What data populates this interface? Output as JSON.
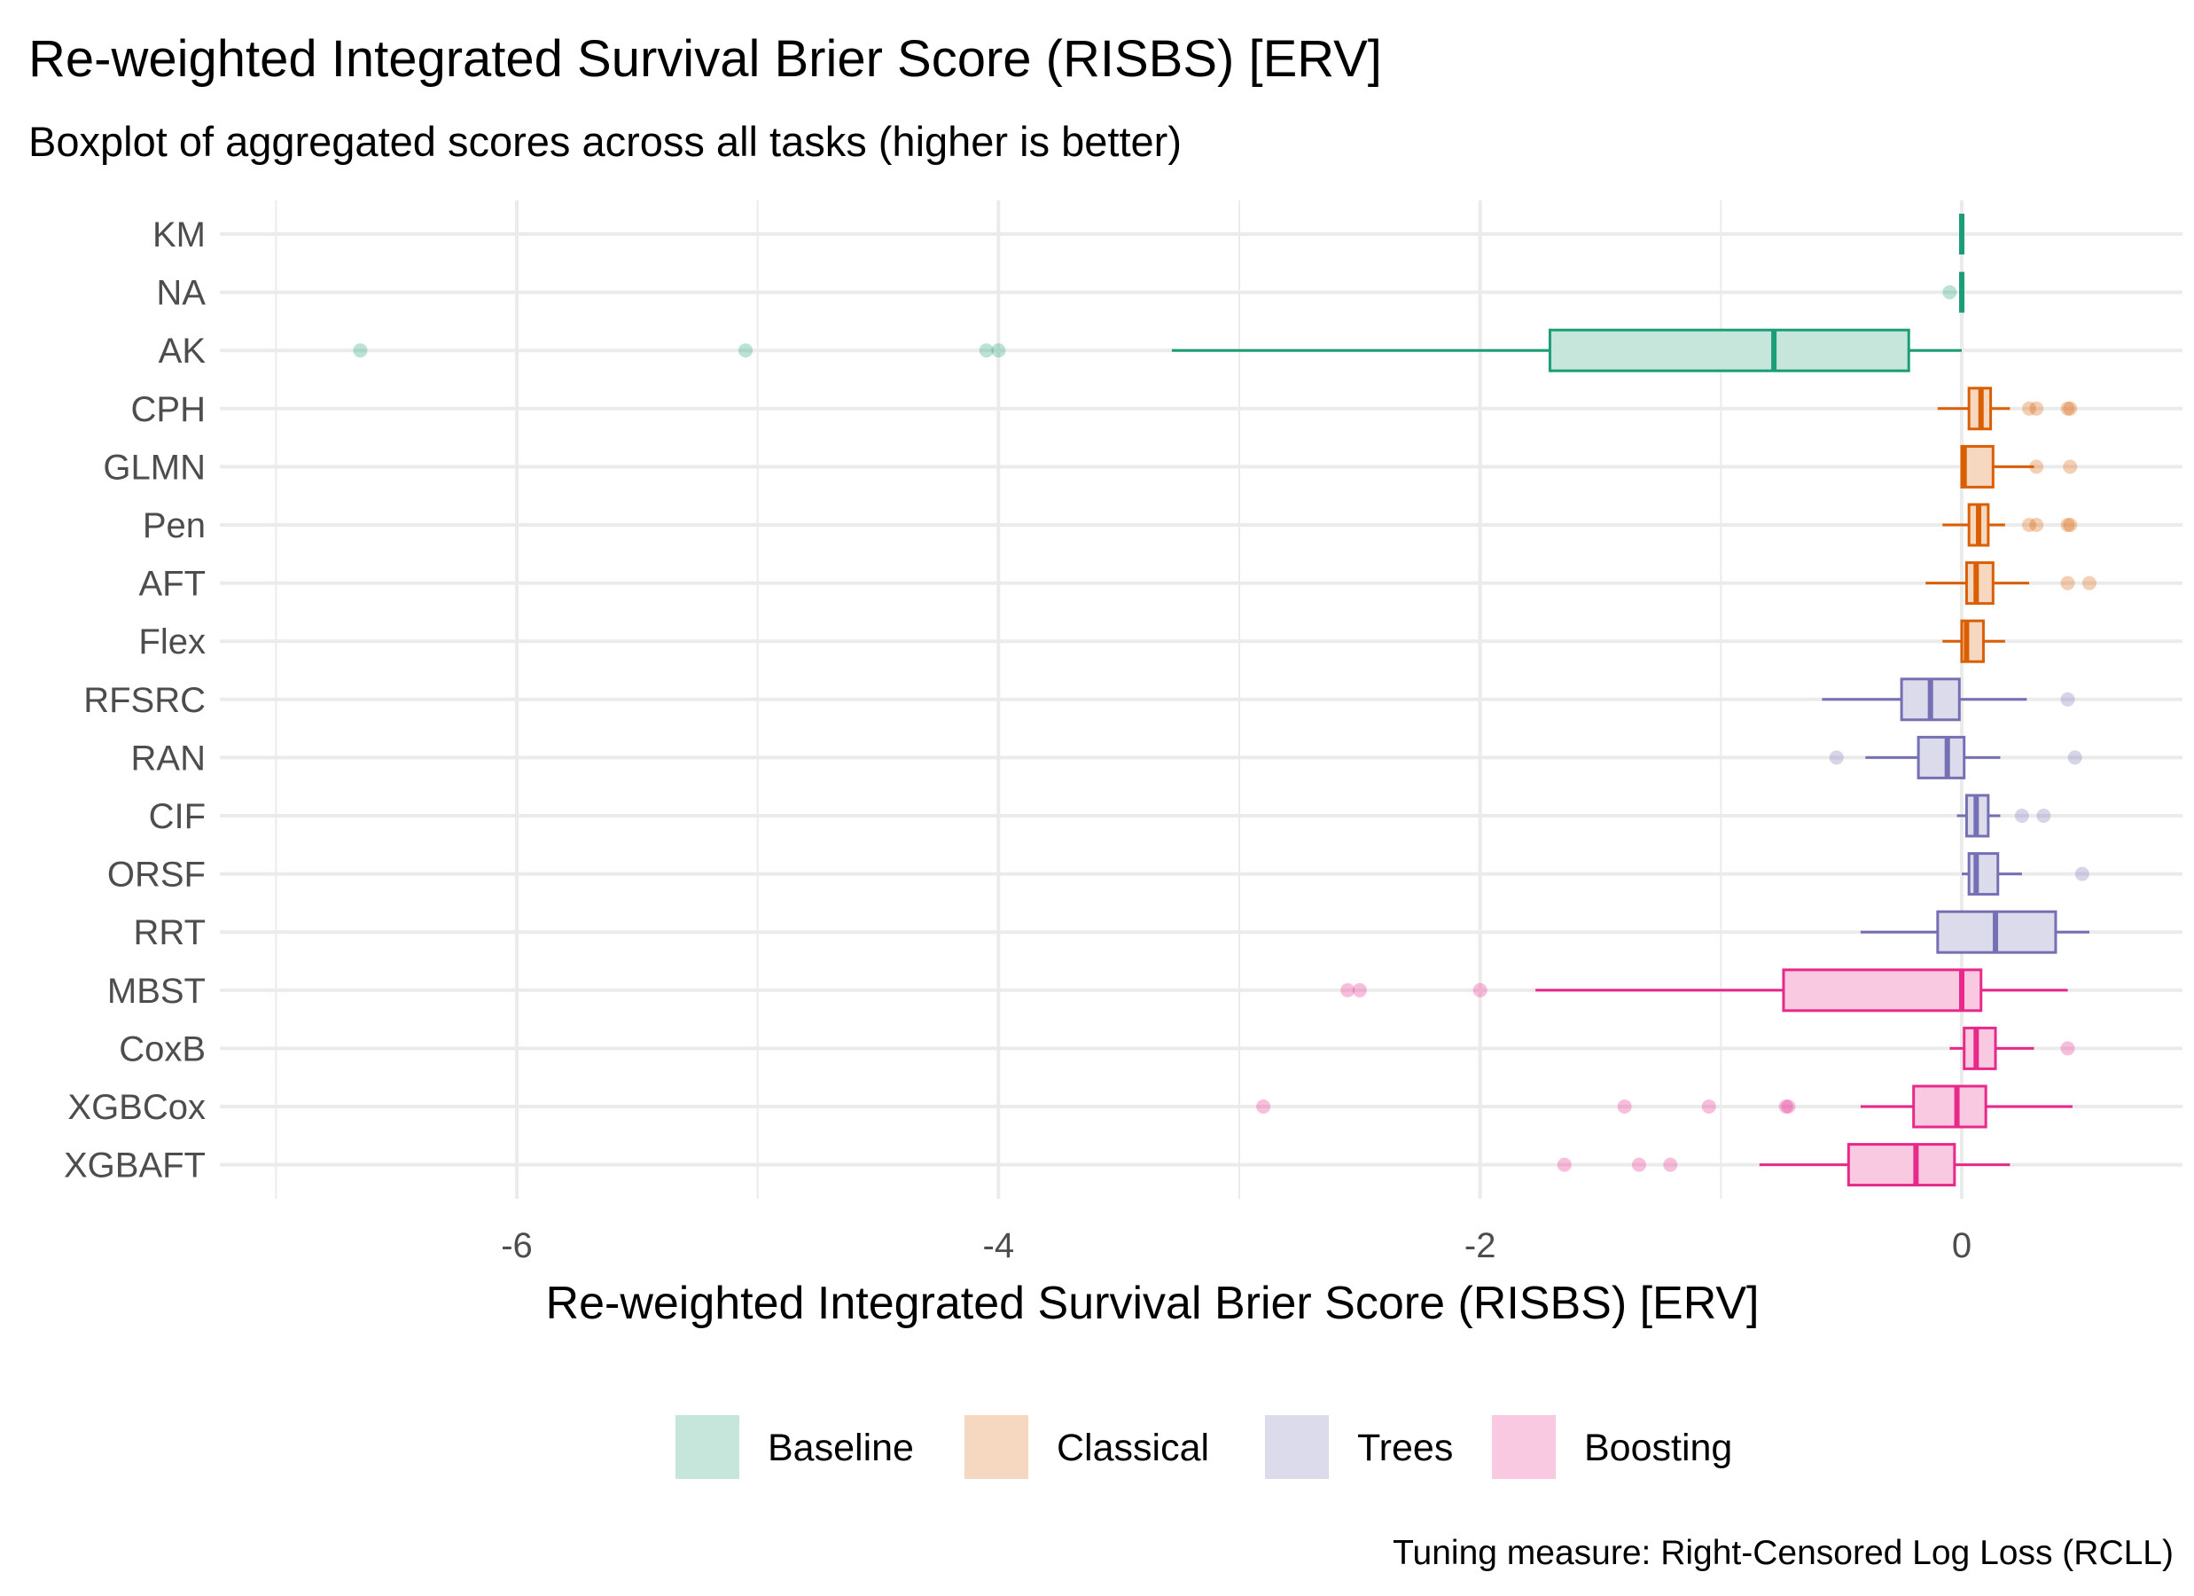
{
  "chart_data": {
    "type": "boxplot",
    "title": "Re-weighted Integrated Survival Brier Score (RISBS) [ERV]",
    "subtitle": "Boxplot of aggregated scores across all tasks (higher is better)",
    "xlabel": "Re-weighted Integrated Survival Brier Score (RISBS) [ERV]",
    "caption": "Tuning measure: Right-Censored Log Loss (RCLL)",
    "xlim": [
      -7.2,
      0.9
    ],
    "xticks": [
      -6,
      -4,
      -2,
      0
    ],
    "xtick_labels": [
      "-6",
      "-4",
      "-2",
      "0"
    ],
    "grid": true,
    "legend_position": "bottom",
    "groups": [
      {
        "name": "Baseline",
        "color": "#1b9e77",
        "fill": "#c6e6dc"
      },
      {
        "name": "Classical",
        "color": "#d95f02",
        "fill": "#f6d7c0"
      },
      {
        "name": "Trees",
        "color": "#7570b3",
        "fill": "#dcdbeb"
      },
      {
        "name": "Boosting",
        "color": "#e7298a",
        "fill": "#f9c9e1"
      }
    ],
    "boxes": [
      {
        "label": "KM",
        "group": "Baseline",
        "whisker_low": 0,
        "q1": 0,
        "median": 0,
        "q3": 0,
        "whisker_high": 0,
        "outliers": []
      },
      {
        "label": "NA",
        "group": "Baseline",
        "whisker_low": 0,
        "q1": 0,
        "median": 0,
        "q3": 0,
        "whisker_high": 0,
        "outliers": [
          -0.05
        ]
      },
      {
        "label": "AK",
        "group": "Baseline",
        "whisker_low": -3.28,
        "q1": -1.71,
        "median": -0.78,
        "q3": -0.22,
        "whisker_high": 0,
        "outliers": [
          -6.65,
          -5.05,
          -4.05,
          -4.0
        ]
      },
      {
        "label": "CPH",
        "group": "Classical",
        "whisker_low": -0.1,
        "q1": 0.03,
        "median": 0.08,
        "q3": 0.12,
        "whisker_high": 0.2,
        "outliers": [
          0.28,
          0.31,
          0.44,
          0.45
        ]
      },
      {
        "label": "GLMN",
        "group": "Classical",
        "whisker_low": 0,
        "q1": 0,
        "median": 0.01,
        "q3": 0.13,
        "whisker_high": 0.3,
        "outliers": [
          0.31,
          0.45
        ]
      },
      {
        "label": "Pen",
        "group": "Classical",
        "whisker_low": -0.08,
        "q1": 0.03,
        "median": 0.07,
        "q3": 0.11,
        "whisker_high": 0.18,
        "outliers": [
          0.28,
          0.31,
          0.44,
          0.45
        ]
      },
      {
        "label": "AFT",
        "group": "Classical",
        "whisker_low": -0.15,
        "q1": 0.02,
        "median": 0.06,
        "q3": 0.13,
        "whisker_high": 0.28,
        "outliers": [
          0.44,
          0.53
        ]
      },
      {
        "label": "Flex",
        "group": "Classical",
        "whisker_low": -0.08,
        "q1": 0,
        "median": 0.02,
        "q3": 0.09,
        "whisker_high": 0.18,
        "outliers": []
      },
      {
        "label": "RFSRC",
        "group": "Trees",
        "whisker_low": -0.58,
        "q1": -0.25,
        "median": -0.13,
        "q3": -0.01,
        "whisker_high": 0.27,
        "outliers": [
          0.44
        ]
      },
      {
        "label": "RAN",
        "group": "Trees",
        "whisker_low": -0.4,
        "q1": -0.18,
        "median": -0.06,
        "q3": 0.01,
        "whisker_high": 0.16,
        "outliers": [
          -0.52,
          0.47
        ]
      },
      {
        "label": "CIF",
        "group": "Trees",
        "whisker_low": -0.02,
        "q1": 0.02,
        "median": 0.06,
        "q3": 0.11,
        "whisker_high": 0.16,
        "outliers": [
          0.25,
          0.34
        ]
      },
      {
        "label": "ORSF",
        "group": "Trees",
        "whisker_low": 0,
        "q1": 0.03,
        "median": 0.06,
        "q3": 0.15,
        "whisker_high": 0.25,
        "outliers": [
          0.5
        ]
      },
      {
        "label": "RRT",
        "group": "Trees",
        "whisker_low": -0.42,
        "q1": -0.1,
        "median": 0.14,
        "q3": 0.39,
        "whisker_high": 0.53,
        "outliers": []
      },
      {
        "label": "MBST",
        "group": "Boosting",
        "whisker_low": -1.77,
        "q1": -0.74,
        "median": 0,
        "q3": 0.08,
        "whisker_high": 0.44,
        "outliers": [
          -2.55,
          -2.5,
          -2.0
        ]
      },
      {
        "label": "CoxB",
        "group": "Boosting",
        "whisker_low": -0.05,
        "q1": 0.01,
        "median": 0.06,
        "q3": 0.14,
        "whisker_high": 0.3,
        "outliers": [
          0.44
        ]
      },
      {
        "label": "XGBCox",
        "group": "Boosting",
        "whisker_low": -0.42,
        "q1": -0.2,
        "median": -0.02,
        "q3": 0.1,
        "whisker_high": 0.46,
        "outliers": [
          -2.9,
          -1.4,
          -1.05,
          -0.73,
          -0.72
        ]
      },
      {
        "label": "XGBAFT",
        "group": "Boosting",
        "whisker_low": -0.84,
        "q1": -0.47,
        "median": -0.19,
        "q3": -0.03,
        "whisker_high": 0.2,
        "outliers": [
          -1.65,
          -1.34,
          -1.21
        ]
      }
    ]
  }
}
